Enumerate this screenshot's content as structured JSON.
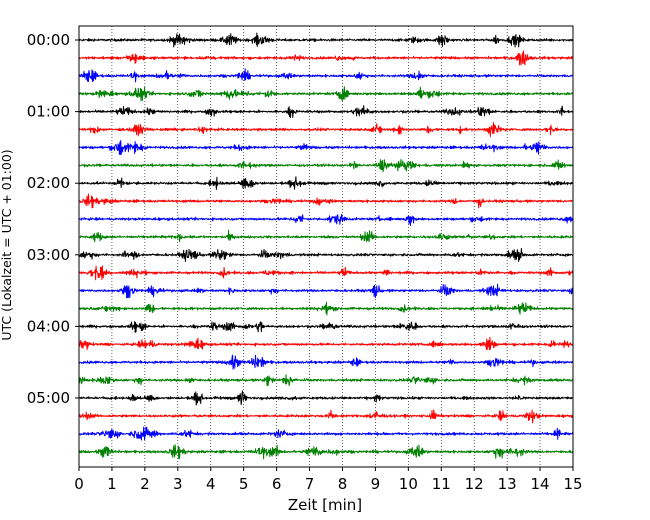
{
  "chart_data": {
    "type": "line",
    "xlabel": "Zeit  [min]",
    "ylabel": "UTC (Lokalzeit = UTC + 01:00)",
    "xlim": [
      0,
      15
    ],
    "x_ticks": [
      "0",
      "1",
      "2",
      "3",
      "4",
      "5",
      "6",
      "7",
      "8",
      "9",
      "10",
      "11",
      "12",
      "13",
      "14",
      "15"
    ],
    "y_tick_labels": [
      "00:00",
      "01:00",
      "02:00",
      "03:00",
      "04:00",
      "05:00"
    ],
    "trace_interval_min": 15,
    "trace_count": 24,
    "trace_colors": [
      "#000000",
      "#ff0000",
      "#0000ff",
      "#008000"
    ],
    "grid": "vertical dotted lines at each minute"
  }
}
